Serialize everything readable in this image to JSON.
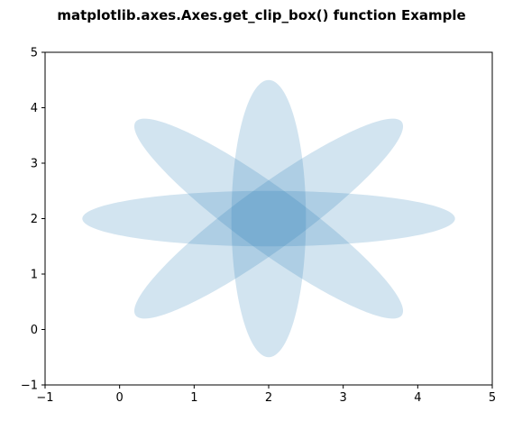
{
  "chart_data": {
    "type": "scatter",
    "title": "matplotlib.axes.Axes.get_clip_box() function Example",
    "xlabel": "",
    "ylabel": "",
    "xlim": [
      -1,
      5
    ],
    "ylim": [
      -1,
      5
    ],
    "xticks": [
      "−1",
      "0",
      "1",
      "2",
      "3",
      "4",
      "5"
    ],
    "yticks": [
      "−1",
      "0",
      "1",
      "2",
      "3",
      "4",
      "5"
    ],
    "xtick_values": [
      -1,
      0,
      1,
      2,
      3,
      4,
      5
    ],
    "ytick_values": [
      -1,
      0,
      1,
      2,
      3,
      4,
      5
    ],
    "grid": false,
    "color": "#1f77b4",
    "alpha": 0.2,
    "ellipses": [
      {
        "cx": 2,
        "cy": 2,
        "width": 5,
        "height": 1,
        "angle_deg": 0
      },
      {
        "cx": 2,
        "cy": 2,
        "width": 5,
        "height": 1,
        "angle_deg": 45
      },
      {
        "cx": 2,
        "cy": 2,
        "width": 5,
        "height": 1,
        "angle_deg": 90
      },
      {
        "cx": 2,
        "cy": 2,
        "width": 5,
        "height": 1,
        "angle_deg": 135
      }
    ]
  }
}
